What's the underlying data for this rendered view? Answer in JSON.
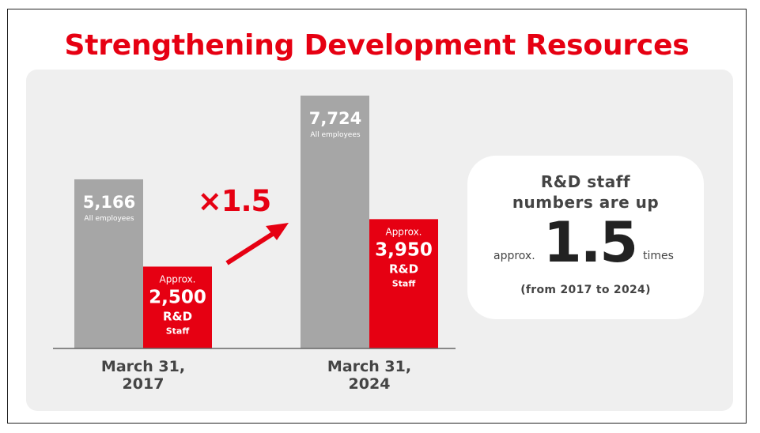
{
  "title": "Strengthening Development Resources",
  "colors": {
    "title": "#e60012",
    "red": "#e60012",
    "gray": "#a6a6a6",
    "text": "#444444",
    "panel": "#efefef"
  },
  "chart_data": {
    "type": "bar",
    "categories": [
      "March 31,\n2017",
      "March 31,\n2024"
    ],
    "series": [
      {
        "name": "All employees",
        "values": [
          5166,
          7724
        ],
        "labels": [
          "5,166",
          "7,724"
        ],
        "color": "#a6a6a6"
      },
      {
        "name": "R&D Staff",
        "values": [
          2500,
          3950
        ],
        "labels": [
          "2,500",
          "3,950"
        ],
        "prefix": "Approx.",
        "suffix": "R&D\nStaff",
        "color": "#e60012"
      }
    ],
    "annotation": "×1.5",
    "ylim": [
      0,
      8000
    ],
    "grid": false
  },
  "card": {
    "heading": "R&D staff\nnumbers are up",
    "approx": "approx.",
    "number": "1.5",
    "times": "times",
    "note": "(from 2017 to 2024)"
  }
}
